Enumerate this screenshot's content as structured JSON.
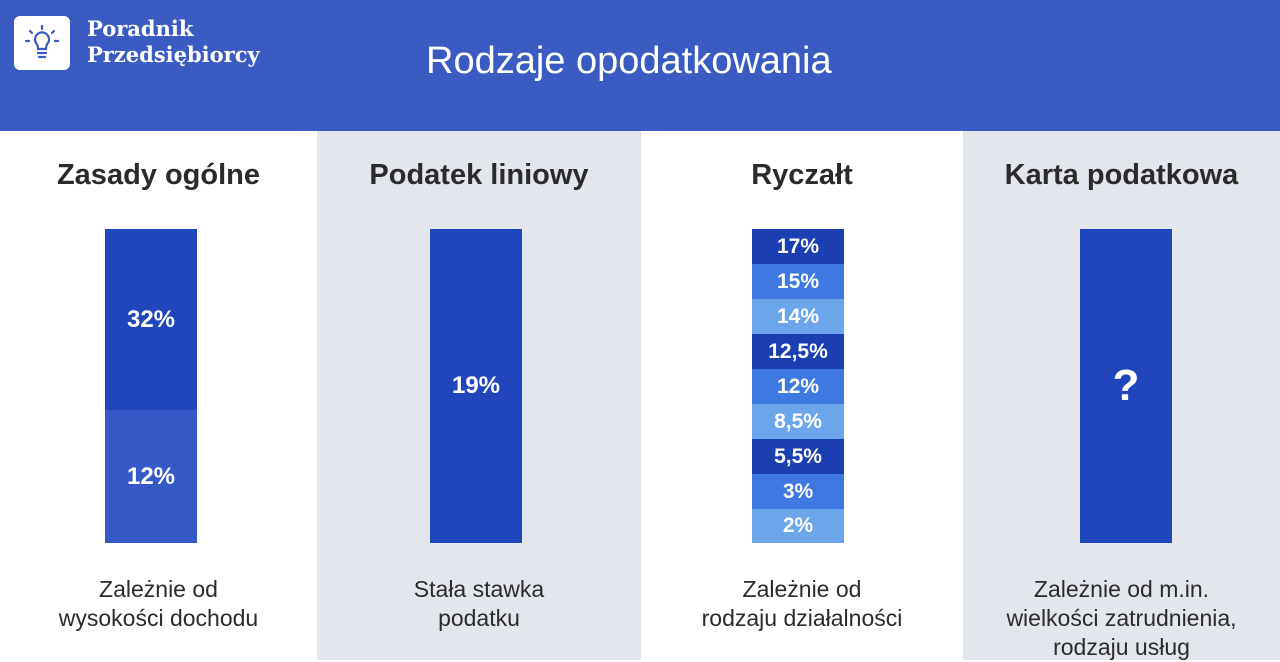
{
  "header": {
    "brand_line1": "Poradnik",
    "brand_line2": "Przedsiębiorcy",
    "logo_icon": "lightbulb-icon",
    "title": "Rodzaje opodatkowania",
    "background_color": "#3a5cc2"
  },
  "chart_data": {
    "type": "table",
    "columns": [
      {
        "title": "Zasady ogólne",
        "segments": [
          {
            "label": "32%",
            "value": 32,
            "color": "#1f47bb"
          },
          {
            "label": "12%",
            "value": 12,
            "color": "#3659c8"
          }
        ],
        "note": [
          "Zależnie od",
          "wysokości dochodu"
        ]
      },
      {
        "title": "Podatek liniowy",
        "segments": [
          {
            "label": "19%",
            "value": 19,
            "color": "#1f47bb"
          }
        ],
        "note": [
          "Stała stawka",
          "podatku"
        ]
      },
      {
        "title": "Ryczałt",
        "segments": [
          {
            "label": "17%",
            "value": 17,
            "color": "#1a3fb0"
          },
          {
            "label": "15%",
            "value": 15,
            "color": "#3d79e0"
          },
          {
            "label": "14%",
            "value": 14,
            "color": "#6ba6ea"
          },
          {
            "label": "12,5%",
            "value": 12.5,
            "color": "#1a3fb0"
          },
          {
            "label": "12%",
            "value": 12,
            "color": "#3d79e0"
          },
          {
            "label": "8,5%",
            "value": 8.5,
            "color": "#6ba6ea"
          },
          {
            "label": "5,5%",
            "value": 5.5,
            "color": "#1a3fb0"
          },
          {
            "label": "3%",
            "value": 3,
            "color": "#3d79e0"
          },
          {
            "label": "2%",
            "value": 2,
            "color": "#6ba6ea"
          }
        ],
        "note": [
          "Zależnie od",
          "rodzaju działalności"
        ]
      },
      {
        "title": "Karta podatkowa",
        "segments": [
          {
            "label": "?",
            "value": null,
            "color": "#1f47bb"
          }
        ],
        "note": [
          "Zależnie od m.in.",
          "wielkości zatrudnienia,",
          "rodzaju usług"
        ]
      }
    ]
  }
}
